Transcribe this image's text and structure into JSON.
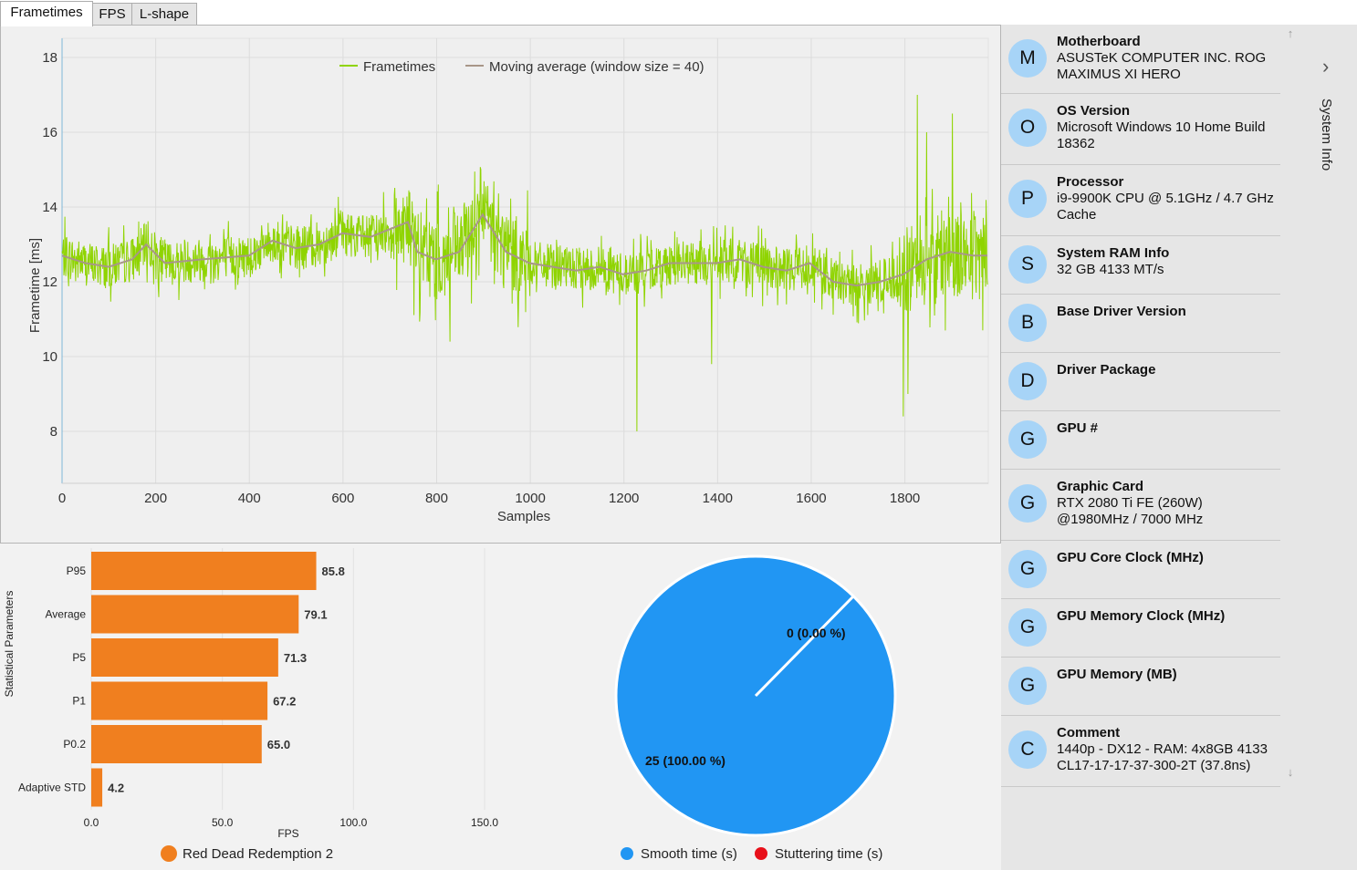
{
  "tabs": [
    {
      "label": "Frametimes",
      "active": true
    },
    {
      "label": "FPS",
      "active": false
    },
    {
      "label": "L-shape",
      "active": false
    }
  ],
  "colors": {
    "frametime_line": "#8fd400",
    "moving_avg_line": "#a89688",
    "bar": "#f07f1f",
    "smooth": "#2196f3",
    "stutter": "#e8101a",
    "avatar_bg": "#a7d4f7"
  },
  "frametime_chart": {
    "chart_data": {
      "type": "line",
      "xlabel": "Samples",
      "ylabel": "Frametime [ms]",
      "xlim": [
        0,
        1980
      ],
      "ylim": [
        7,
        19
      ],
      "x_ticks": [
        "0",
        "200",
        "400",
        "600",
        "800",
        "1000",
        "1200",
        "1400",
        "1600",
        "1800"
      ],
      "y_ticks": [
        "8",
        "10",
        "12",
        "14",
        "16",
        "18"
      ],
      "grid": true,
      "legend_position": "top-center",
      "series": [
        {
          "name": "Frametimes",
          "moving_average_points": [
            [
              0,
              12.7
            ],
            [
              50,
              12.5
            ],
            [
              100,
              12.4
            ],
            [
              150,
              12.6
            ],
            [
              180,
              13.0
            ],
            [
              220,
              12.5
            ],
            [
              300,
              12.6
            ],
            [
              400,
              12.7
            ],
            [
              450,
              13.1
            ],
            [
              500,
              12.9
            ],
            [
              550,
              13.0
            ],
            [
              600,
              13.3
            ],
            [
              660,
              13.2
            ],
            [
              700,
              13.4
            ],
            [
              740,
              13.6
            ],
            [
              760,
              12.8
            ],
            [
              800,
              12.6
            ],
            [
              850,
              12.8
            ],
            [
              900,
              13.8
            ],
            [
              950,
              12.8
            ],
            [
              1000,
              12.5
            ],
            [
              1050,
              12.4
            ],
            [
              1100,
              12.3
            ],
            [
              1150,
              12.4
            ],
            [
              1200,
              12.2
            ],
            [
              1250,
              12.3
            ],
            [
              1300,
              12.5
            ],
            [
              1400,
              12.5
            ],
            [
              1450,
              12.6
            ],
            [
              1500,
              12.4
            ],
            [
              1550,
              12.3
            ],
            [
              1600,
              12.5
            ],
            [
              1650,
              12.0
            ],
            [
              1700,
              11.9
            ],
            [
              1750,
              12.0
            ],
            [
              1800,
              12.2
            ],
            [
              1850,
              12.6
            ],
            [
              1900,
              12.8
            ],
            [
              1950,
              12.7
            ],
            [
              1980,
              12.7
            ]
          ],
          "spikes": [
            [
              1230,
              8.0
            ],
            [
              1800,
              8.4
            ],
            [
              1830,
              17.0
            ],
            [
              1390,
              9.8
            ],
            [
              1905,
              9.6
            ],
            [
              1810,
              9.0
            ],
            [
              1905,
              16.5
            ],
            [
              1850,
              16.0
            ],
            [
              830,
              16.3
            ],
            [
              830,
              10.4
            ]
          ]
        },
        {
          "name": "Moving average (window size = 40)",
          "points": [
            [
              0,
              12.7
            ],
            [
              50,
              12.5
            ],
            [
              100,
              12.4
            ],
            [
              150,
              12.6
            ],
            [
              180,
              13.0
            ],
            [
              220,
              12.5
            ],
            [
              300,
              12.6
            ],
            [
              400,
              12.7
            ],
            [
              450,
              13.1
            ],
            [
              500,
              12.9
            ],
            [
              550,
              13.0
            ],
            [
              600,
              13.3
            ],
            [
              660,
              13.2
            ],
            [
              700,
              13.4
            ],
            [
              740,
              13.6
            ],
            [
              760,
              12.8
            ],
            [
              800,
              12.6
            ],
            [
              850,
              12.8
            ],
            [
              900,
              13.8
            ],
            [
              950,
              12.8
            ],
            [
              1000,
              12.5
            ],
            [
              1050,
              12.4
            ],
            [
              1100,
              12.3
            ],
            [
              1150,
              12.4
            ],
            [
              1200,
              12.2
            ],
            [
              1250,
              12.3
            ],
            [
              1300,
              12.5
            ],
            [
              1400,
              12.5
            ],
            [
              1450,
              12.6
            ],
            [
              1500,
              12.4
            ],
            [
              1550,
              12.3
            ],
            [
              1600,
              12.5
            ],
            [
              1650,
              12.0
            ],
            [
              1700,
              11.9
            ],
            [
              1750,
              12.0
            ],
            [
              1800,
              12.2
            ],
            [
              1850,
              12.6
            ],
            [
              1900,
              12.8
            ],
            [
              1950,
              12.7
            ],
            [
              1980,
              12.7
            ]
          ]
        }
      ]
    }
  },
  "bar_chart": {
    "chart_data": {
      "type": "bar",
      "orientation": "horizontal",
      "categories": [
        "P95",
        "Average",
        "P5",
        "P1",
        "P0.2",
        "Adaptive STD"
      ],
      "values": [
        85.8,
        79.1,
        71.3,
        67.2,
        65.0,
        4.2
      ],
      "value_labels": [
        "85.8",
        "79.1",
        "71.3",
        "67.2",
        "65.0",
        "4.2"
      ],
      "xlabel": "FPS",
      "ylabel": "Statistical Parameters",
      "xlim": [
        0,
        150
      ],
      "x_ticks": [
        "0.0",
        "50.0",
        "100.0",
        "150.0"
      ],
      "series": [
        {
          "name": "Red Dead Redemption 2",
          "values": [
            85.8,
            79.1,
            71.3,
            67.2,
            65.0,
            4.2
          ]
        }
      ],
      "legend_position": "bottom"
    }
  },
  "pie_chart": {
    "chart_data": {
      "type": "pie",
      "slices": [
        {
          "name": "Smooth time (s)",
          "value": 25,
          "label": "25 (100.00 %)"
        },
        {
          "name": "Stuttering time (s)",
          "value": 0,
          "label": "0 (0.00 %)"
        }
      ],
      "legend_position": "bottom"
    }
  },
  "system_info": {
    "label": "System Info",
    "items": [
      {
        "initial": "M",
        "title": "Motherboard",
        "value": "ASUSTeK COMPUTER INC. ROG MAXIMUS XI HERO"
      },
      {
        "initial": "O",
        "title": "OS Version",
        "value": "Microsoft Windows 10 Home Build 18362"
      },
      {
        "initial": "P",
        "title": "Processor",
        "value": "i9-9900K CPU @ 5.1GHz / 4.7 GHz Cache"
      },
      {
        "initial": "S",
        "title": "System RAM Info",
        "value": "32 GB 4133 MT/s"
      },
      {
        "initial": "B",
        "title": "Base Driver Version",
        "value": ""
      },
      {
        "initial": "D",
        "title": "Driver Package",
        "value": ""
      },
      {
        "initial": "G",
        "title": "GPU #",
        "value": ""
      },
      {
        "initial": "G",
        "title": "Graphic Card",
        "value": "RTX 2080 Ti FE (260W) @1980MHz / 7000 MHz"
      },
      {
        "initial": "G",
        "title": "GPU Core Clock (MHz)",
        "value": ""
      },
      {
        "initial": "G",
        "title": "GPU Memory Clock (MHz)",
        "value": ""
      },
      {
        "initial": "G",
        "title": "GPU Memory (MB)",
        "value": ""
      },
      {
        "initial": "C",
        "title": "Comment",
        "value": "1440p - DX12 - RAM: 4x8GB 4133 CL17-17-17-37-300-2T (37.8ns)"
      }
    ]
  }
}
